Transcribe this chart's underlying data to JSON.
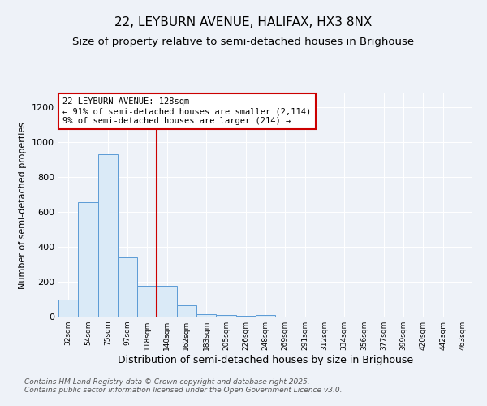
{
  "title": "22, LEYBURN AVENUE, HALIFAX, HX3 8NX",
  "subtitle": "Size of property relative to semi-detached houses in Brighouse",
  "xlabel": "Distribution of semi-detached houses by size in Brighouse",
  "ylabel": "Number of semi-detached properties",
  "bin_labels": [
    "32sqm",
    "54sqm",
    "75sqm",
    "97sqm",
    "118sqm",
    "140sqm",
    "162sqm",
    "183sqm",
    "205sqm",
    "226sqm",
    "248sqm",
    "269sqm",
    "291sqm",
    "312sqm",
    "334sqm",
    "356sqm",
    "377sqm",
    "399sqm",
    "420sqm",
    "442sqm",
    "463sqm"
  ],
  "bar_heights": [
    100,
    655,
    930,
    340,
    175,
    175,
    65,
    15,
    10,
    5,
    10,
    0,
    0,
    0,
    2,
    0,
    0,
    0,
    0,
    0,
    0
  ],
  "bar_color": "#daeaf7",
  "bar_edge_color": "#5b9bd5",
  "red_line_x": 4.5,
  "annotation_text": "22 LEYBURN AVENUE: 128sqm\n← 91% of semi-detached houses are smaller (2,114)\n9% of semi-detached houses are larger (214) →",
  "annotation_box_color": "#ffffff",
  "annotation_box_edge": "#cc0000",
  "vline_color": "#cc0000",
  "footer1": "Contains HM Land Registry data © Crown copyright and database right 2025.",
  "footer2": "Contains public sector information licensed under the Open Government Licence v3.0.",
  "ylim": [
    0,
    1280
  ],
  "yticks": [
    0,
    200,
    400,
    600,
    800,
    1000,
    1200
  ],
  "background_color": "#eef2f8",
  "plot_background": "#eef2f8",
  "title_fontsize": 11,
  "subtitle_fontsize": 9.5,
  "xlabel_fontsize": 9,
  "ylabel_fontsize": 8,
  "footer_fontsize": 6.5
}
